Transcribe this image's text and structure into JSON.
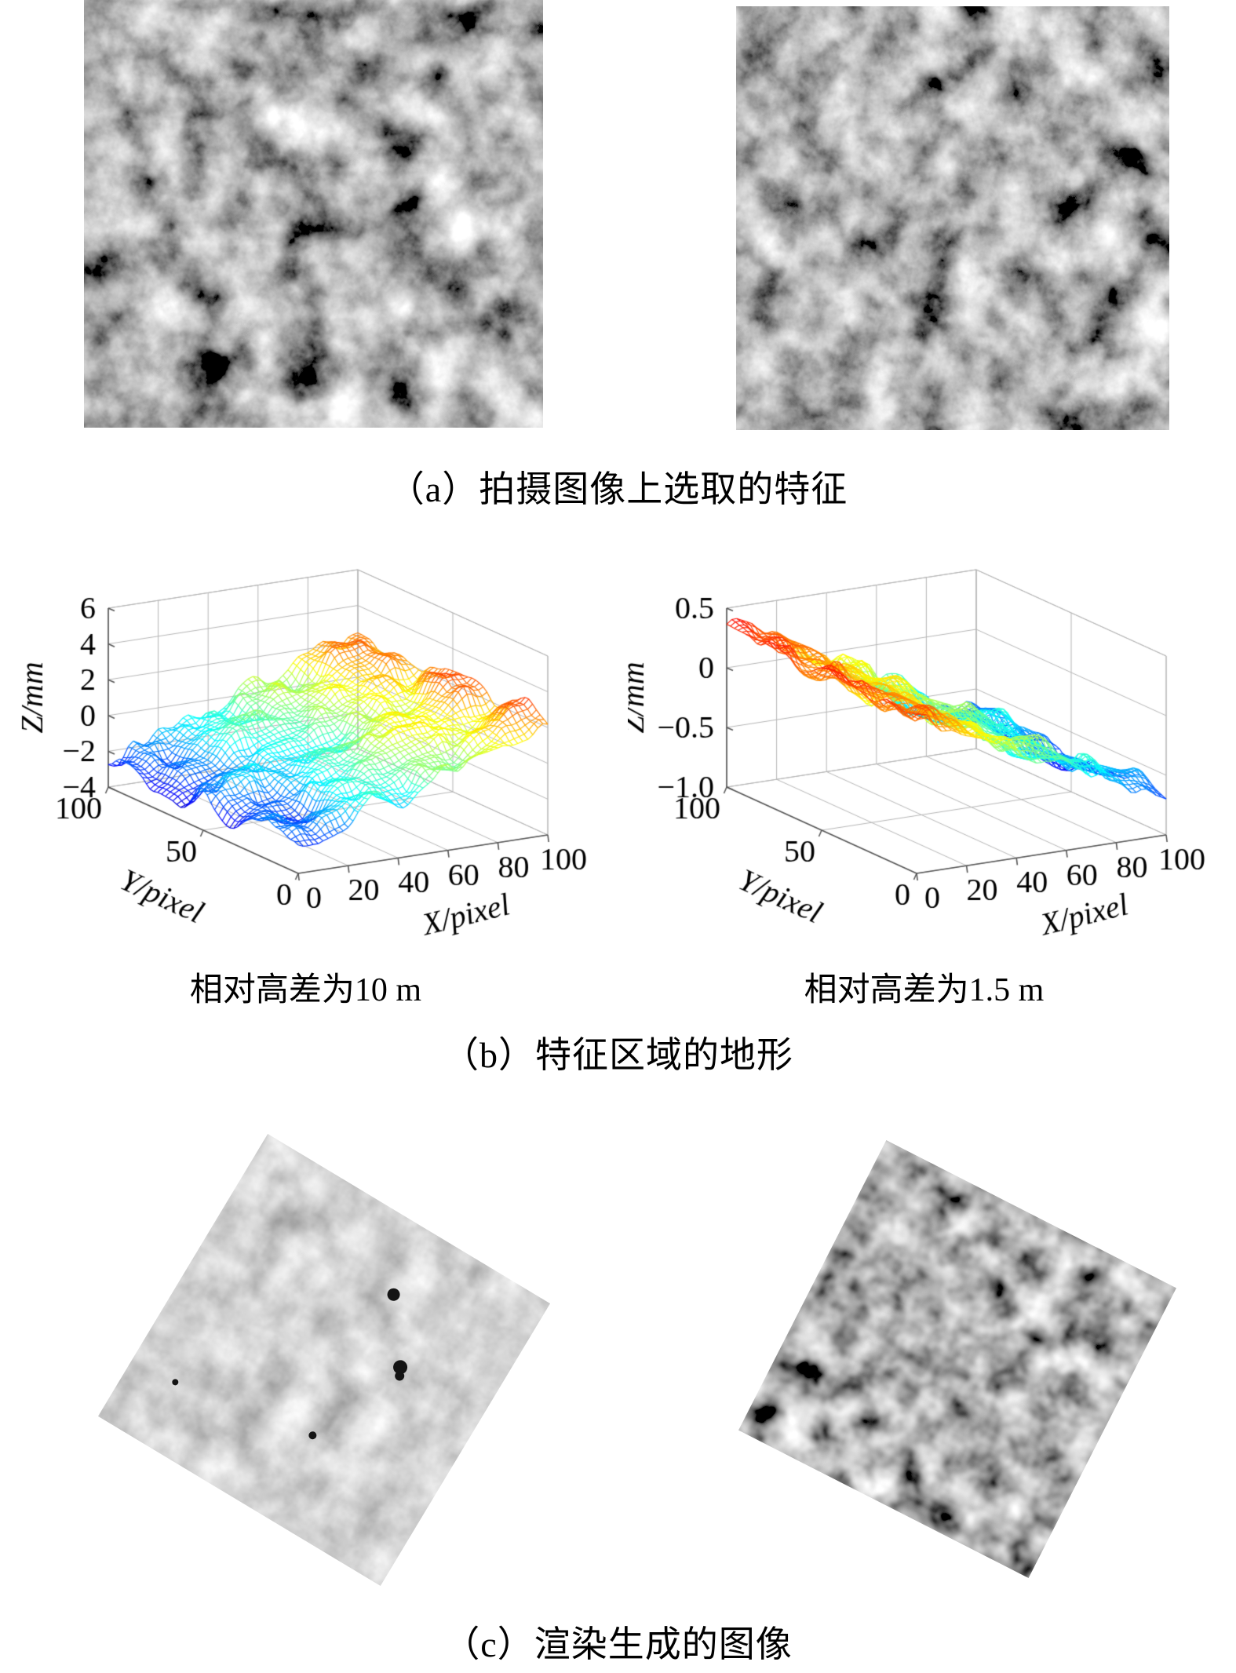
{
  "figure": {
    "caption_a": "（a）拍摄图像上选取的特征",
    "caption_b": "（b）特征区域的地形",
    "caption_c": "（c）渲染生成的图像"
  },
  "chart_data": [
    {
      "type": "surface",
      "title": "相对高差为10 m",
      "xlabel": "X/pixel",
      "ylabel": "Y/pixel",
      "zlabel": "Z/mm",
      "xlim": [
        0,
        100
      ],
      "ylim": [
        0,
        100
      ],
      "zlim": [
        -4,
        6
      ],
      "x_ticks": [
        0,
        20,
        40,
        60,
        80,
        100
      ],
      "x_tick_labels": [
        "0",
        "20",
        "40",
        "60",
        "80",
        "100"
      ],
      "y_ticks": [
        0,
        50,
        100
      ],
      "y_tick_labels": [
        "0",
        "50",
        "100"
      ],
      "z_ticks": [
        6,
        4,
        2,
        0,
        -2,
        -4
      ],
      "z_tick_labels": [
        "6",
        "4",
        "2",
        "0",
        "−2",
        "−4"
      ],
      "grid": true,
      "colormap": "jet",
      "legend": "none",
      "surface_model": {
        "seed": 12,
        "z_at_x0": -2.7,
        "z_at_x100": 2.5,
        "noise_amplitude": 1.1,
        "color_range": [
          -4.0,
          4.6
        ]
      }
    },
    {
      "type": "surface",
      "title": "相对高差为1.5 m",
      "xlabel": "X/pixel",
      "ylabel": "Y/pixel",
      "zlabel": "Z/mm",
      "xlim": [
        0,
        100
      ],
      "ylim": [
        0,
        100
      ],
      "zlim": [
        -1.0,
        0.5
      ],
      "x_ticks": [
        0,
        20,
        40,
        60,
        80,
        100
      ],
      "x_tick_labels": [
        "0",
        "20",
        "40",
        "60",
        "80",
        "100"
      ],
      "y_ticks": [
        0,
        50,
        100
      ],
      "y_tick_labels": [
        "0",
        "50",
        "100"
      ],
      "z_ticks": [
        0.5,
        0,
        -0.5,
        -1.0
      ],
      "z_tick_labels": [
        "0.5",
        "0",
        "−0.5",
        "−1.0"
      ],
      "grid": true,
      "colormap": "jet",
      "legend": "none",
      "surface_model": {
        "seed": 77,
        "z_at_x0": 0.33,
        "z_at_x100": -0.7,
        "noise_amplitude": 0.16,
        "color_range": [
          -1.0,
          0.62
        ]
      }
    }
  ]
}
